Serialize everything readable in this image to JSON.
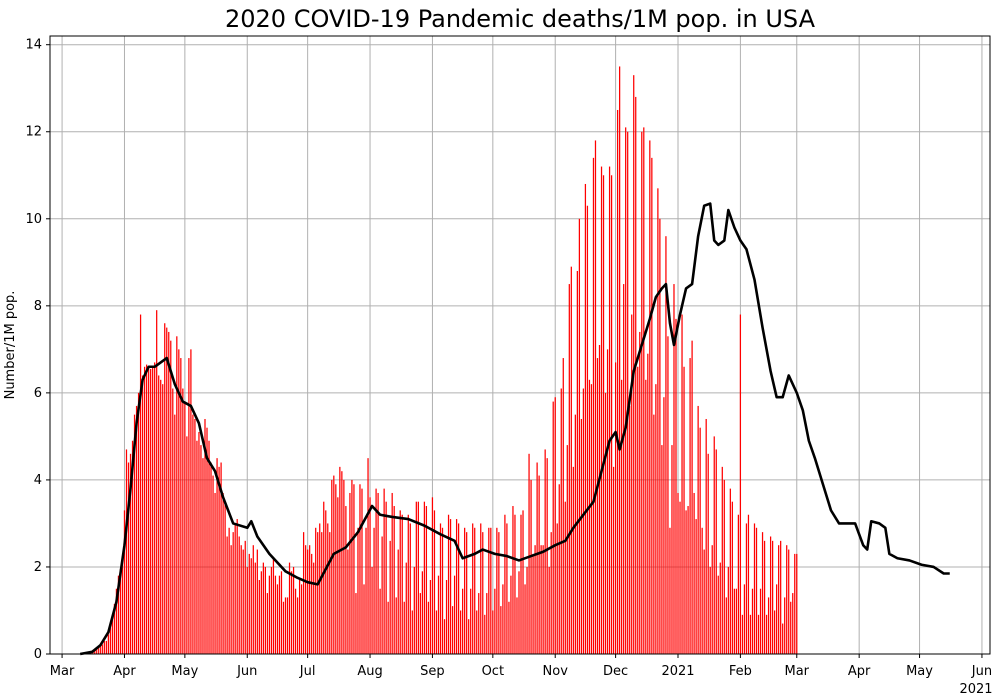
{
  "chart_data": {
    "type": "bar",
    "title": "2020 COVID-19 Pandemic deaths/1M pop. in USA",
    "xlabel": "",
    "ylabel": "Number/1M pop.",
    "ylim": [
      0,
      14.2
    ],
    "xlim": [
      "2020-02-24",
      "2021-06-05"
    ],
    "grid": true,
    "legend": "none",
    "colors": {
      "bars": "#ff0000",
      "average_line": "#000000",
      "grid": "#b0b0b0"
    },
    "y_ticks": [
      "0",
      "2",
      "4",
      "6",
      "8",
      "10",
      "12",
      "14"
    ],
    "x_ticks": [
      {
        "date": "2020-03-01",
        "label": "Mar"
      },
      {
        "date": "2020-04-01",
        "label": "Apr"
      },
      {
        "date": "2020-05-01",
        "label": "May"
      },
      {
        "date": "2020-06-01",
        "label": "Jun"
      },
      {
        "date": "2020-07-01",
        "label": "Jul"
      },
      {
        "date": "2020-08-01",
        "label": "Aug"
      },
      {
        "date": "2020-09-01",
        "label": "Sep"
      },
      {
        "date": "2020-10-01",
        "label": "Oct"
      },
      {
        "date": "2020-11-01",
        "label": "Nov"
      },
      {
        "date": "2020-12-01",
        "label": "Dec"
      },
      {
        "date": "2021-01-01",
        "label": "2021"
      },
      {
        "date": "2021-02-01",
        "label": "Feb"
      },
      {
        "date": "2021-03-01",
        "label": "Mar"
      },
      {
        "date": "2021-04-01",
        "label": "Apr"
      },
      {
        "date": "2021-05-01",
        "label": "May"
      },
      {
        "date": "2021-06-01",
        "label": "Jun"
      }
    ],
    "x_corner_label": "2021",
    "series": [
      {
        "type": "bar",
        "start_date": "2020-03-06",
        "values": [
          0.01,
          0.01,
          0.01,
          0.01,
          0.01,
          0.02,
          0.02,
          0.03,
          0.03,
          0.04,
          0.06,
          0.08,
          0.1,
          0.14,
          0.18,
          0.22,
          0.3,
          0.3,
          0.45,
          0.62,
          0.8,
          1.15,
          1.5,
          1.8,
          1.95,
          2.1,
          3.3,
          4.7,
          4.4,
          4.6,
          4.9,
          5.5,
          5.7,
          6.0,
          7.8,
          6.4,
          6.6,
          6.65,
          6.6,
          6.55,
          6.6,
          6.7,
          7.9,
          6.4,
          6.3,
          6.2,
          7.6,
          7.5,
          7.4,
          7.2,
          6.1,
          5.5,
          7.3,
          7.0,
          6.8,
          6.1,
          5.8,
          5.0,
          6.8,
          7.0,
          5.5,
          5.4,
          4.9,
          5.1,
          4.8,
          4.5,
          5.4,
          5.2,
          4.9,
          4.4,
          4.1,
          3.7,
          4.5,
          4.3,
          4.4,
          3.7,
          3.5,
          2.7,
          2.9,
          2.5,
          2.8,
          3.0,
          3.1,
          2.7,
          2.5,
          2.4,
          2.6,
          2.0,
          2.3,
          2.2,
          2.5,
          2.1,
          2.4,
          1.7,
          1.9,
          2.1,
          2.0,
          1.4,
          1.8,
          2.0,
          2.2,
          1.8,
          1.6,
          1.8,
          1.9,
          1.2,
          1.3,
          1.3,
          2.1,
          1.9,
          2.0,
          1.5,
          1.3,
          1.7,
          1.6,
          2.8,
          2.5,
          2.4,
          2.5,
          2.3,
          2.1,
          2.9,
          2.8,
          3.0,
          2.8,
          3.5,
          3.3,
          3.0,
          2.8,
          4.0,
          4.1,
          3.9,
          3.6,
          4.3,
          4.2,
          4.0,
          3.4,
          2.4,
          3.7,
          4.0,
          3.9,
          1.4,
          2.9,
          3.9,
          3.8,
          1.6,
          2.9,
          4.5,
          3.6,
          2.0,
          2.9,
          3.8,
          3.7,
          1.5,
          2.7,
          3.8,
          3.5,
          1.2,
          2.6,
          3.7,
          3.4,
          1.3,
          2.4,
          3.3,
          3.2,
          1.2,
          2.1,
          3.2,
          3.0,
          1.0,
          2.0,
          3.5,
          3.5,
          1.4,
          1.9,
          3.5,
          3.4,
          1.2,
          1.7,
          3.6,
          3.3,
          1.0,
          1.8,
          3.0,
          2.9,
          0.8,
          1.7,
          3.2,
          3.1,
          1.1,
          1.8,
          3.1,
          3.0,
          1.0,
          1.5,
          2.9,
          2.8,
          0.8,
          1.5,
          3.0,
          2.9,
          1.0,
          1.4,
          3.0,
          2.8,
          0.9,
          1.4,
          2.9,
          2.9,
          1.0,
          1.5,
          2.9,
          2.8,
          1.1,
          1.6,
          3.2,
          3.0,
          1.2,
          1.8,
          3.4,
          3.2,
          1.3,
          1.9,
          3.2,
          3.3,
          1.6,
          2.0,
          4.6,
          4.0,
          2.3,
          2.5,
          4.4,
          4.1,
          2.5,
          2.5,
          4.7,
          4.5,
          2.0,
          2.8,
          5.8,
          5.9,
          3.0,
          3.9,
          6.1,
          6.8,
          3.5,
          4.8,
          8.5,
          8.9,
          4.3,
          5.5,
          8.8,
          10.0,
          5.4,
          6.1,
          10.8,
          10.3,
          6.3,
          6.2,
          11.4,
          11.8,
          6.8,
          7.1,
          11.2,
          11.0,
          6.0,
          7.0,
          11.2,
          11.0,
          4.3,
          6.7,
          12.5,
          13.5,
          6.3,
          8.5,
          12.1,
          12.0,
          5.7,
          7.8,
          13.3,
          12.8,
          6.6,
          7.4,
          12.0,
          12.1,
          6.3,
          6.9,
          11.8,
          11.4,
          5.5,
          6.2,
          10.7,
          10.0,
          4.8,
          5.9,
          9.6,
          7.3,
          2.9,
          4.8,
          8.5,
          7.7,
          3.7,
          3.5,
          7.8,
          6.6,
          3.3,
          3.4,
          6.8,
          7.2,
          3.7,
          3.1,
          5.7,
          5.2,
          2.9,
          2.4,
          5.4,
          4.6,
          2.0,
          2.5,
          5.0,
          4.7,
          1.8,
          2.1,
          4.3,
          4.0,
          1.3,
          2.0,
          3.8,
          3.5,
          1.5,
          1.5,
          3.2,
          7.8,
          0.9,
          1.6,
          3.0,
          3.2,
          0.9,
          1.5,
          3.0,
          2.9,
          0.9,
          1.5,
          2.8,
          2.6,
          0.9,
          1.3,
          2.7,
          2.6,
          1.0,
          1.6,
          2.5,
          2.6,
          0.7,
          1.3,
          2.5,
          2.4,
          1.2,
          1.4,
          2.3,
          2.3
        ]
      },
      {
        "type": "line",
        "name": "",
        "points": [
          [
            "2020-03-10",
            0.0
          ],
          [
            "2020-03-16",
            0.05
          ],
          [
            "2020-03-20",
            0.2
          ],
          [
            "2020-03-24",
            0.5
          ],
          [
            "2020-03-28",
            1.2
          ],
          [
            "2020-04-01",
            2.5
          ],
          [
            "2020-04-04",
            3.8
          ],
          [
            "2020-04-07",
            5.3
          ],
          [
            "2020-04-10",
            6.3
          ],
          [
            "2020-04-13",
            6.6
          ],
          [
            "2020-04-16",
            6.6
          ],
          [
            "2020-04-19",
            6.7
          ],
          [
            "2020-04-22",
            6.8
          ],
          [
            "2020-04-26",
            6.2
          ],
          [
            "2020-04-30",
            5.8
          ],
          [
            "2020-05-04",
            5.7
          ],
          [
            "2020-05-08",
            5.3
          ],
          [
            "2020-05-12",
            4.5
          ],
          [
            "2020-05-16",
            4.2
          ],
          [
            "2020-05-20",
            3.6
          ],
          [
            "2020-05-25",
            3.0
          ],
          [
            "2020-06-01",
            2.9
          ],
          [
            "2020-06-03",
            3.05
          ],
          [
            "2020-06-06",
            2.7
          ],
          [
            "2020-06-12",
            2.3
          ],
          [
            "2020-06-20",
            1.9
          ],
          [
            "2020-06-26",
            1.75
          ],
          [
            "2020-07-01",
            1.65
          ],
          [
            "2020-07-06",
            1.6
          ],
          [
            "2020-07-10",
            1.95
          ],
          [
            "2020-07-14",
            2.3
          ],
          [
            "2020-07-20",
            2.45
          ],
          [
            "2020-07-26",
            2.8
          ],
          [
            "2020-08-02",
            3.4
          ],
          [
            "2020-08-06",
            3.2
          ],
          [
            "2020-08-12",
            3.15
          ],
          [
            "2020-08-20",
            3.1
          ],
          [
            "2020-08-28",
            2.95
          ],
          [
            "2020-09-05",
            2.75
          ],
          [
            "2020-09-12",
            2.6
          ],
          [
            "2020-09-16",
            2.2
          ],
          [
            "2020-09-22",
            2.3
          ],
          [
            "2020-09-26",
            2.4
          ],
          [
            "2020-10-02",
            2.3
          ],
          [
            "2020-10-08",
            2.25
          ],
          [
            "2020-10-14",
            2.15
          ],
          [
            "2020-10-20",
            2.25
          ],
          [
            "2020-10-26",
            2.35
          ],
          [
            "2020-11-01",
            2.5
          ],
          [
            "2020-11-06",
            2.6
          ],
          [
            "2020-11-10",
            2.9
          ],
          [
            "2020-11-15",
            3.2
          ],
          [
            "2020-11-20",
            3.5
          ],
          [
            "2020-11-24",
            4.2
          ],
          [
            "2020-11-28",
            4.9
          ],
          [
            "2020-12-01",
            5.1
          ],
          [
            "2020-12-03",
            4.7
          ],
          [
            "2020-12-06",
            5.2
          ],
          [
            "2020-12-10",
            6.5
          ],
          [
            "2020-12-14",
            7.1
          ],
          [
            "2020-12-18",
            7.7
          ],
          [
            "2020-12-21",
            8.2
          ],
          [
            "2020-12-24",
            8.4
          ],
          [
            "2020-12-26",
            8.5
          ],
          [
            "2020-12-28",
            7.6
          ],
          [
            "2020-12-30",
            7.1
          ],
          [
            "2021-01-02",
            7.8
          ],
          [
            "2021-01-05",
            8.4
          ],
          [
            "2021-01-08",
            8.5
          ],
          [
            "2021-01-11",
            9.6
          ],
          [
            "2021-01-14",
            10.3
          ],
          [
            "2021-01-17",
            10.35
          ],
          [
            "2021-01-19",
            9.5
          ],
          [
            "2021-01-21",
            9.4
          ],
          [
            "2021-01-24",
            9.5
          ],
          [
            "2021-01-26",
            10.2
          ],
          [
            "2021-01-29",
            9.8
          ],
          [
            "2021-02-01",
            9.5
          ],
          [
            "2021-02-04",
            9.3
          ],
          [
            "2021-02-08",
            8.6
          ],
          [
            "2021-02-12",
            7.5
          ],
          [
            "2021-02-16",
            6.5
          ],
          [
            "2021-02-19",
            5.9
          ],
          [
            "2021-02-22",
            5.9
          ],
          [
            "2021-02-25",
            6.4
          ],
          [
            "2021-03-01",
            6.0
          ],
          [
            "2021-03-04",
            5.6
          ],
          [
            "2021-03-07",
            4.9
          ],
          [
            "2021-03-10",
            4.5
          ],
          [
            "2021-03-14",
            3.9
          ],
          [
            "2021-03-18",
            3.3
          ],
          [
            "2021-03-22",
            3.0
          ],
          [
            "2021-03-26",
            3.0
          ],
          [
            "2021-03-30",
            3.0
          ],
          [
            "2021-04-01",
            2.75
          ],
          [
            "2021-04-03",
            2.5
          ],
          [
            "2021-04-05",
            2.4
          ],
          [
            "2021-04-07",
            3.05
          ],
          [
            "2021-04-11",
            3.0
          ],
          [
            "2021-04-14",
            2.9
          ],
          [
            "2021-04-16",
            2.3
          ],
          [
            "2021-04-20",
            2.2
          ],
          [
            "2021-04-26",
            2.15
          ],
          [
            "2021-05-02",
            2.05
          ],
          [
            "2021-05-08",
            2.0
          ],
          [
            "2021-05-13",
            1.85
          ],
          [
            "2021-05-16",
            1.85
          ]
        ]
      }
    ]
  }
}
